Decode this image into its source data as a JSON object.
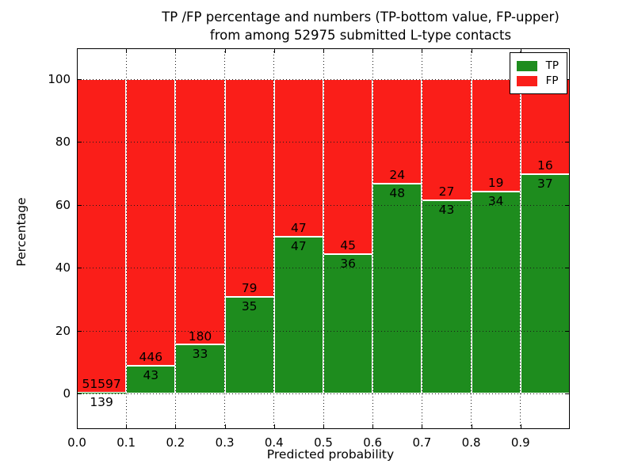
{
  "chart_data": {
    "type": "bar",
    "stacked": true,
    "normalized": "each bin scaled to 100%",
    "title_line1": "TP /FP percentage and numbers (TP-bottom value, FP-upper)",
    "title_line2": "from among 52975 submitted L-type contacts",
    "title": "TP /FP percentage and numbers (TP-bottom value, FP-upper)\nfrom among 52975 submitted L-type contacts",
    "xlabel": "Predicted probability",
    "ylabel": "Percentage",
    "x_tick_labels": [
      "0.0",
      "0.1",
      "0.2",
      "0.3",
      "0.4",
      "0.5",
      "0.6",
      "0.7",
      "0.8",
      "0.9"
    ],
    "y_ticks": [
      0,
      20,
      40,
      60,
      80,
      100
    ],
    "y_tick_labels": [
      "0",
      "20",
      "40",
      "60",
      "80",
      "100"
    ],
    "xlim": [
      0.0,
      1.0
    ],
    "ylim": [
      -11.5,
      110
    ],
    "bin_width": 0.1,
    "grid": "dotted, both axes",
    "series": [
      {
        "name": "TP",
        "color": "#1e8c1e",
        "counts": [
          139,
          43,
          33,
          35,
          47,
          36,
          48,
          43,
          34,
          37
        ]
      },
      {
        "name": "FP",
        "color": "#fa1e19",
        "counts": [
          51597,
          446,
          180,
          79,
          47,
          45,
          24,
          27,
          19,
          16
        ]
      }
    ],
    "tp_percent_visual": [
      0.3,
      8.8,
      15.5,
      30.7,
      50.0,
      44.4,
      66.7,
      61.4,
      64.2,
      69.8
    ],
    "legend": {
      "position": "upper right",
      "entries": [
        {
          "label": "TP",
          "color": "#1e8c1e"
        },
        {
          "label": "FP",
          "color": "#fa1e19"
        }
      ]
    }
  }
}
